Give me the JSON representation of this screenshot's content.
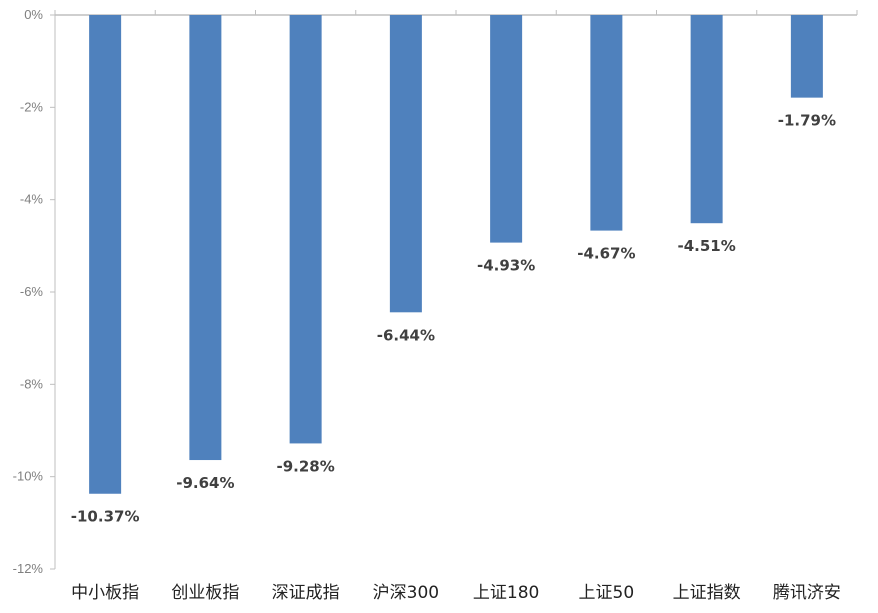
{
  "chart_data": {
    "type": "bar",
    "title": "",
    "xlabel": "",
    "ylabel": "",
    "categories": [
      "中小板指",
      "创业板指",
      "深证成指",
      "沪深300",
      "上证180",
      "上证50",
      "上证指数",
      "腾讯济安"
    ],
    "values": [
      -10.37,
      -9.64,
      -9.28,
      -6.44,
      -4.93,
      -4.67,
      -4.51,
      -1.79
    ],
    "data_labels": [
      "-10.37%",
      "-9.64%",
      "-9.28%",
      "-6.44%",
      "-4.93%",
      "-4.67%",
      "-4.51%",
      "-1.79%"
    ],
    "ylim": [
      -12,
      0
    ],
    "y_ticks": [
      0,
      -2,
      -4,
      -6,
      -8,
      -10,
      -12
    ],
    "y_tick_labels": [
      "0%",
      "-2%",
      "-4%",
      "-6%",
      "-8%",
      "-10%",
      "-12%"
    ],
    "category_axis_position": "top",
    "category_labels_position": "bottom",
    "grid": false,
    "legend": "none",
    "colors": {
      "bar": "#4f81bd",
      "axis": "#bfbfbf",
      "tick_text": "#7f7f7f",
      "category_text": "#222222",
      "data_label_text": "#404040"
    }
  }
}
